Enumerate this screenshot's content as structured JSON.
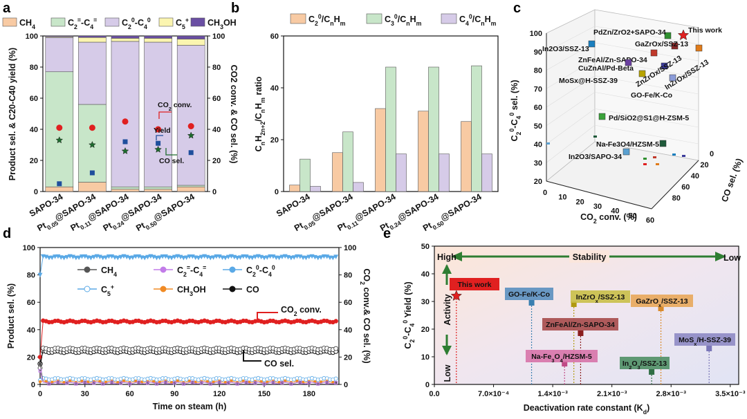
{
  "panel_labels": [
    "a",
    "b",
    "c",
    "d",
    "e"
  ],
  "chart_data": [
    {
      "panel": "a",
      "type": "bar",
      "stacked": true,
      "categories": [
        "SAPO-34",
        "Pt0.05@SAPO-34",
        "Pt0.11@SAPO-34",
        "Pt0.24@SAPO-34",
        "Pt0.50@SAPO-34"
      ],
      "category_labels": [
        {
          "main": "SAPO-34",
          "pre": "",
          "sub": "",
          "post": ""
        },
        {
          "main": "",
          "pre": "Pt",
          "sub": "0.05",
          "post": "@SAPO-34"
        },
        {
          "main": "",
          "pre": "Pt",
          "sub": "0.11",
          "post": "@SAPO-34"
        },
        {
          "main": "",
          "pre": "Pt",
          "sub": "0.24",
          "post": "@SAPO-34"
        },
        {
          "main": "",
          "pre": "Pt",
          "sub": "0.50",
          "post": "@SAPO-34"
        }
      ],
      "series": [
        {
          "name": "CH4",
          "label_main": "CH",
          "label_sub": "4",
          "color": "#f8caa3",
          "values": [
            3,
            6,
            1.5,
            1.5,
            3
          ]
        },
        {
          "name": "C2=-C4=",
          "label_main": "C",
          "label_sub": "2",
          "label_mid": "=-C",
          "label_sub2": "4",
          "label_end": "=",
          "color": "#c8e6c9",
          "values": [
            74,
            50,
            1.5,
            1.5,
            1
          ]
        },
        {
          "name": "C20-C40",
          "label_main": "C",
          "label_sub": "2",
          "label_mid": "0-C",
          "label_sub2": "4",
          "label_end": "0",
          "color": "#d6cbe8",
          "values": [
            22,
            40,
            93.5,
            93,
            90
          ]
        },
        {
          "name": "C5+",
          "label_main": "C",
          "label_sub": "5",
          "label_end": "+",
          "color": "#fbf5b0",
          "values": [
            0.5,
            3,
            2,
            2.5,
            4
          ]
        },
        {
          "name": "CH3OH",
          "label_main": "CH",
          "label_sub": "3",
          "label_end": "OH",
          "color": "#6a4fa3",
          "values": [
            0.5,
            1,
            1.5,
            1.5,
            2
          ]
        }
      ],
      "overlays": [
        {
          "name": "CO2 conv.",
          "marker": "circle",
          "color": "#e02020",
          "values": [
            41,
            41,
            45,
            40,
            42
          ]
        },
        {
          "name": "Yield",
          "marker": "square",
          "color": "#1f4e9c",
          "values": [
            5,
            12,
            32,
            31,
            25
          ]
        },
        {
          "name": "CO sel.",
          "marker": "star",
          "color": "#1d6b2d",
          "values": [
            33,
            30,
            26,
            27,
            36
          ]
        }
      ],
      "annotations": [
        "CO2 conv.",
        "Yield",
        "CO sel."
      ],
      "ylabel_left": "Product sel. & C20-C40 yield (%)",
      "ylabel_right": "CO2 conv. & CO sel. (%)",
      "ylim": [
        0,
        100
      ],
      "yticks": [
        0,
        20,
        40,
        60,
        80,
        100
      ]
    },
    {
      "panel": "b",
      "type": "bar",
      "categories": [
        "SAPO-34",
        "Pt0.05@SAPO-34",
        "Pt0.11@SAPO-34",
        "Pt0.24@SAPO-34",
        "Pt0.50@SAPO-34"
      ],
      "series": [
        {
          "name": "C20/CnHm",
          "color": "#f8caa3",
          "values": [
            2.5,
            15,
            32,
            31,
            27
          ]
        },
        {
          "name": "C30/CnHm",
          "color": "#c8e6c9",
          "values": [
            12.5,
            23,
            48,
            48,
            48.5
          ]
        },
        {
          "name": "C40/CnHm",
          "color": "#d6cbe8",
          "values": [
            2,
            3.5,
            14.5,
            14.5,
            14.5
          ]
        }
      ],
      "ylabel": "CnH2n+2/CnHm ratio",
      "ylim": [
        0,
        60
      ],
      "yticks": [
        0,
        20,
        40,
        60
      ]
    },
    {
      "panel": "c",
      "type": "scatter",
      "dim": "3d",
      "xlabel": "CO2 conv. (%)",
      "ylabel": "CO sel. (%)",
      "zlabel": "C20-C40 sel. (%)",
      "xticks": [
        0,
        10,
        20,
        30,
        40,
        50,
        60
      ],
      "yticks": [
        0,
        20,
        40,
        60,
        80
      ],
      "zticks": [
        20,
        30,
        40,
        50,
        60,
        70,
        80,
        90,
        100
      ],
      "points": [
        {
          "label": "This work",
          "color": "#e02020"
        },
        {
          "label": "PdZn/ZrO2+SAPO-34",
          "color": "#2f8f2f"
        },
        {
          "label": "GaZrOx/SSZ-13",
          "color": "#8b2a2a"
        },
        {
          "label": "In2O3/SSZ-13",
          "color": "#1a7fbf"
        },
        {
          "label": "ZnFeAl/Zn-SAPO-34",
          "color": "#c0392b"
        },
        {
          "label": "CuZnAl/Pd-Beta",
          "color": "#6a3fa0"
        },
        {
          "label": "ZnZrOx/SSZ-13",
          "color": "#3b3b9a"
        },
        {
          "label": "InZrOx/SSZ-13",
          "color": "#e07b1a"
        },
        {
          "label": "MoSx@H-SSZ-39",
          "color": "#b8a400"
        },
        {
          "label": "GO-Fe/K-Co",
          "color": "#8a9bd8"
        },
        {
          "label": "Pd/SiO2@S1@H-ZSM-5",
          "color": "#3aa23a"
        },
        {
          "label": "Na-Fe3O4/HZSM-5",
          "color": "#1f5a3a"
        },
        {
          "label": "In2O3/SAPO-34",
          "color": "#5aa0d0"
        }
      ]
    },
    {
      "panel": "d",
      "type": "line",
      "xlabel": "Time on steam (h)",
      "ylabel_left": "Product sel. (%)",
      "ylabel_right": "CO2 conv.& CO sel. (%)",
      "xticks": [
        0,
        30,
        60,
        90,
        120,
        150,
        180
      ],
      "xlim": [
        0,
        200
      ],
      "ylim": [
        0,
        100
      ],
      "yticks": [
        0,
        20,
        40,
        60,
        80,
        100
      ],
      "series": [
        {
          "name": "CH4",
          "color": "#555555",
          "start": 15,
          "value": 1
        },
        {
          "name": "C2=-C4=",
          "color": "#c27ce8",
          "start": 10,
          "value": 1
        },
        {
          "name": "C20-C40",
          "color": "#5aa9e6",
          "start": 80,
          "value": 93
        },
        {
          "name": "C5+",
          "color": "#5aa9e6",
          "start": 3,
          "value": 4
        },
        {
          "name": "CH3OH",
          "color": "#f08a24",
          "start": 2,
          "value": 2
        },
        {
          "name": "CO",
          "color": "#111111",
          "start": 15,
          "value": 24
        }
      ],
      "right_series": [
        {
          "name": "CO2 conv.",
          "color": "#e02020",
          "start": 20,
          "value": 46
        },
        {
          "name": "CO sel.",
          "color": "#111111",
          "start": 12,
          "value": 26
        }
      ],
      "legend": [
        "CH4",
        "C2=-C4=",
        "C20-C40",
        "C5+",
        "CH3OH",
        "CO"
      ],
      "annotations": [
        "CO2 conv.",
        "CO sel."
      ]
    },
    {
      "panel": "e",
      "type": "scatter",
      "xlabel": "Deactivation rate constant (Kd)",
      "ylabel": "C20-C40 Yield (%)",
      "xticks": [
        "0.0",
        "7.0×10-4",
        "1.4×10-3",
        "2.1×10-3",
        "2.8×10-3",
        "3.5×10-3"
      ],
      "tick_labels": [
        "0.0",
        "7.0×10⁻⁴",
        "1.4×10⁻³",
        "2.1×10⁻³",
        "2.8×10⁻³",
        "3.5×10⁻³"
      ],
      "xlim": [
        0,
        0.0036
      ],
      "ylim": [
        0,
        50
      ],
      "yticks": [
        0,
        10,
        20,
        30,
        40,
        50
      ],
      "points": [
        {
          "label": "This work",
          "x": 0.00026,
          "y": 32,
          "color": "#e02020",
          "marker": "star"
        },
        {
          "label": "GO-Fe/K-Co",
          "x": 0.00115,
          "y": 29.5,
          "color": "#3a7fb0",
          "marker": "square"
        },
        {
          "label": "InZrOx/SSZ-13",
          "x": 0.00165,
          "y": 29,
          "color": "#b09a10",
          "marker": "square"
        },
        {
          "label": "GaZrOx/SSZ-13",
          "x": 0.00268,
          "y": 27.5,
          "color": "#d98a2a",
          "marker": "square"
        },
        {
          "label": "ZnFeAl/Zn-SAPO-34",
          "x": 0.00173,
          "y": 18.5,
          "color": "#8b1d1d",
          "marker": "square"
        },
        {
          "label": "Na-Fe3O4/HZSM-5",
          "x": 0.00154,
          "y": 7.5,
          "color": "#c04a86",
          "marker": "square"
        },
        {
          "label": "In2O3/SSZ-13",
          "x": 0.00257,
          "y": 4.5,
          "color": "#2f6e45",
          "marker": "square"
        },
        {
          "label": "MoSx/H-SSZ-39",
          "x": 0.00325,
          "y": 13,
          "color": "#7a76b8",
          "marker": "square"
        }
      ],
      "annotations": [
        "High",
        "Stability",
        "Low",
        "Activity",
        "Low"
      ]
    }
  ]
}
